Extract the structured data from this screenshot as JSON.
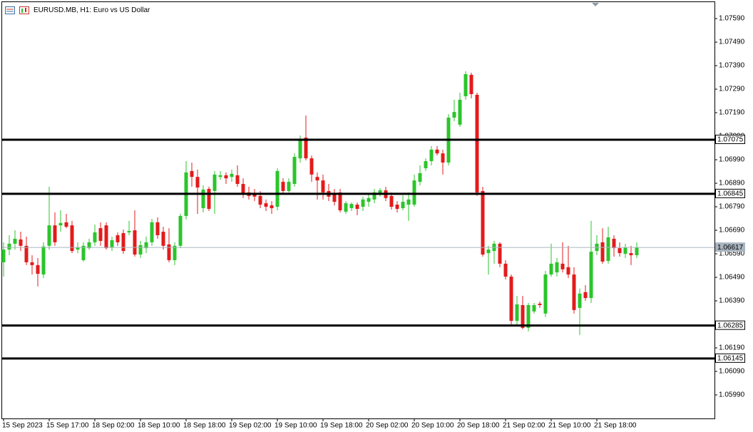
{
  "chart_data": {
    "type": "candlestick",
    "title": "EURUSD.MB, H1:  Euro vs US Dollar",
    "categories": [
      "15 Sep 2023",
      null,
      null,
      null,
      null,
      null,
      null,
      null,
      "15 Sep 17:00",
      null,
      null,
      null,
      null,
      null,
      null,
      null,
      "18 Sep 02:00",
      null,
      null,
      null,
      null,
      null,
      null,
      null,
      "18 Sep 10:00",
      null,
      null,
      null,
      null,
      null,
      null,
      null,
      "18 Sep 18:00",
      null,
      null,
      null,
      null,
      null,
      null,
      null,
      "19 Sep 02:00",
      null,
      null,
      null,
      null,
      null,
      null,
      null,
      "19 Sep 10:00",
      null,
      null,
      null,
      null,
      null,
      null,
      null,
      "19 Sep 18:00",
      null,
      null,
      null,
      null,
      null,
      null,
      null,
      "20 Sep 02:00",
      null,
      null,
      null,
      null,
      null,
      null,
      null,
      "20 Sep 10:00",
      null,
      null,
      null,
      null,
      null,
      null,
      null,
      "20 Sep 18:00",
      null,
      null,
      null,
      null,
      null,
      null,
      null,
      "21 Sep 02:00",
      null,
      null,
      null,
      null,
      null,
      null,
      null,
      "21 Sep 10:00",
      null,
      null,
      null,
      null,
      null,
      null,
      null,
      "21 Sep 18:00",
      null,
      null,
      null,
      null,
      null,
      null,
      null
    ],
    "open": [
      1.06554,
      1.06608,
      1.06633,
      1.06651,
      1.06624,
      1.06554,
      1.06542,
      1.06502,
      1.06624,
      1.06711,
      1.06711,
      1.06724,
      1.06711,
      1.06608,
      1.06563,
      1.06614,
      1.06639,
      1.06699,
      1.06711,
      1.06617,
      1.06669,
      1.06678,
      1.06681,
      1.0669,
      1.06587,
      1.06614,
      1.06639,
      1.06724,
      1.06684,
      1.0663,
      1.06563,
      1.06624,
      1.06751,
      1.06942,
      1.06917,
      1.06784,
      1.06866,
      1.06857,
      1.06917,
      1.06924,
      1.06917,
      1.06924,
      1.06887,
      1.06851,
      1.06848,
      1.06836,
      1.06805,
      1.06796,
      1.0679,
      1.06896,
      1.06857,
      1.06887,
      1.06996,
      1.07084,
      1.06996,
      1.06917,
      1.06902,
      1.06857,
      1.06845,
      1.06851,
      1.06769,
      1.06784,
      1.06799,
      1.0679,
      1.06811,
      1.06821,
      1.06845,
      1.0686,
      1.06836,
      1.06799,
      1.06784,
      1.06799,
      1.06799,
      1.06896,
      1.06954,
      1.06984,
      1.07033,
      1.07017,
      1.06978,
      1.07169,
      1.07139,
      1.0726,
      1.07351,
      1.07266,
      1.06857,
      1.06593,
      1.06602,
      1.06633,
      1.06548,
      1.06493,
      1.06305,
      1.06372,
      1.06275,
      1.06345,
      1.06378,
      1.06336,
      1.06502,
      1.06511,
      1.06548,
      1.06533,
      1.06502,
      1.0636,
      1.06427,
      1.06402,
      1.06602,
      1.06639,
      1.0656,
      1.06654,
      1.06614,
      1.0659,
      1.06593,
      1.06584
    ],
    "high": [
      1.06639,
      1.06669,
      1.0669,
      1.06684,
      1.06663,
      1.06584,
      1.06572,
      1.06639,
      1.06875,
      1.06766,
      1.06775,
      1.0676,
      1.0673,
      1.06639,
      1.06639,
      1.06654,
      1.06714,
      1.06724,
      1.06724,
      1.06663,
      1.06681,
      1.06693,
      1.0673,
      1.06775,
      1.06645,
      1.06663,
      1.06739,
      1.06745,
      1.06705,
      1.06699,
      1.06639,
      1.0676,
      1.06984,
      1.06978,
      1.06948,
      1.06881,
      1.06875,
      1.06942,
      1.06942,
      1.06936,
      1.06948,
      1.06966,
      1.06911,
      1.06875,
      1.06866,
      1.06857,
      1.06821,
      1.06814,
      1.06954,
      1.06911,
      1.06911,
      1.07017,
      1.07093,
      1.07178,
      1.07008,
      1.06936,
      1.06927,
      1.06887,
      1.06866,
      1.06866,
      1.06814,
      1.06808,
      1.06808,
      1.06833,
      1.06845,
      1.06866,
      1.06869,
      1.06875,
      1.06851,
      1.06814,
      1.06839,
      1.06851,
      1.06927,
      1.06966,
      1.06996,
      1.07048,
      1.07048,
      1.07033,
      1.07184,
      1.07245,
      1.07275,
      1.07366,
      1.0736,
      1.07275,
      1.06875,
      1.06624,
      1.06645,
      1.06639,
      1.06563,
      1.06502,
      1.06411,
      1.06411,
      1.06381,
      1.06381,
      1.06387,
      1.06517,
      1.06633,
      1.06572,
      1.06639,
      1.06624,
      1.06533,
      1.06442,
      1.06457,
      1.0673,
      1.06669,
      1.06699,
      1.06705,
      1.06669,
      1.06639,
      1.06633,
      1.06624,
      1.06639
    ],
    "low": [
      1.06493,
      1.06584,
      1.06608,
      1.06602,
      1.06542,
      1.06502,
      1.06451,
      1.06487,
      1.06608,
      1.06624,
      1.06684,
      1.06699,
      1.06593,
      1.06593,
      1.06557,
      1.06608,
      1.06624,
      1.06624,
      1.06608,
      1.06602,
      1.06624,
      1.0659,
      1.06669,
      1.06578,
      1.06572,
      1.06593,
      1.06624,
      1.06654,
      1.06608,
      1.06554,
      1.06542,
      1.06614,
      1.06736,
      1.06875,
      1.0676,
      1.06766,
      1.06772,
      1.0676,
      1.06905,
      1.06887,
      1.06896,
      1.06875,
      1.06827,
      1.06821,
      1.06814,
      1.06784,
      1.06772,
      1.0676,
      1.06775,
      1.06845,
      1.06851,
      1.06875,
      1.06978,
      1.06987,
      1.06896,
      1.06821,
      1.06821,
      1.06814,
      1.06796,
      1.06766,
      1.0676,
      1.06772,
      1.06754,
      1.06772,
      1.0679,
      1.06805,
      1.06833,
      1.06814,
      1.06778,
      1.06766,
      1.06775,
      1.0673,
      1.0679,
      1.06881,
      1.06942,
      1.06966,
      1.07008,
      1.06927,
      1.06966,
      1.07154,
      1.0713,
      1.07245,
      1.07251,
      1.06836,
      1.06578,
      1.06502,
      1.06548,
      1.06533,
      1.06481,
      1.0629,
      1.06281,
      1.06269,
      1.0626,
      1.06336,
      1.0636,
      1.06321,
      1.06493,
      1.06493,
      1.06511,
      1.06487,
      1.06336,
      1.06245,
      1.0639,
      1.06381,
      1.06584,
      1.06548,
      1.06548,
      1.06578,
      1.06578,
      1.06572,
      1.06542,
      1.06572
    ],
    "close": [
      1.06608,
      1.06633,
      1.06654,
      1.06624,
      1.06554,
      1.06542,
      1.06505,
      1.06621,
      1.06711,
      1.06639,
      1.06721,
      1.06705,
      1.06602,
      1.06617,
      1.06624,
      1.06639,
      1.06681,
      1.06645,
      1.06614,
      1.06648,
      1.06639,
      1.06602,
      1.06687,
      1.06587,
      1.06627,
      1.06639,
      1.06724,
      1.06669,
      1.06624,
      1.06563,
      1.06624,
      1.06751,
      1.06936,
      1.06917,
      1.06872,
      1.06863,
      1.06781,
      1.06927,
      1.06924,
      1.06911,
      1.0693,
      1.06887,
      1.06845,
      1.06836,
      1.06833,
      1.06799,
      1.0679,
      1.06784,
      1.06942,
      1.06857,
      1.06896,
      1.07002,
      1.07078,
      1.06996,
      1.06927,
      1.06902,
      1.06851,
      1.06833,
      1.06811,
      1.06775,
      1.06805,
      1.06802,
      1.06781,
      1.06821,
      1.06827,
      1.06851,
      1.0686,
      1.06827,
      1.0679,
      1.06781,
      1.06811,
      1.06821,
      1.06902,
      1.06933,
      1.06984,
      1.07033,
      1.07017,
      1.06978,
      1.07169,
      1.07193,
      1.07245,
      1.07354,
      1.07269,
      1.06851,
      1.06587,
      1.06608,
      1.06633,
      1.06548,
      1.06493,
      1.06305,
      1.06375,
      1.06275,
      1.06372,
      1.06372,
      1.06372,
      1.06502,
      1.06548,
      1.06554,
      1.06524,
      1.06502,
      1.06351,
      1.06421,
      1.06402,
      1.06599,
      1.06633,
      1.06557,
      1.0666,
      1.06614,
      1.06593,
      1.06617,
      1.06584,
      1.06617
    ],
    "up_color": "#2bc52b",
    "down_color": "#e31b1b",
    "ylim": [
      1.0589,
      1.0766
    ],
    "yticks": [
      {
        "value": 1.0759,
        "label": "1.07590"
      },
      {
        "value": 1.0749,
        "label": "1.07490"
      },
      {
        "value": 1.0739,
        "label": "1.07390"
      },
      {
        "value": 1.0729,
        "label": "1.07290"
      },
      {
        "value": 1.0719,
        "label": "1.07190"
      },
      {
        "value": 1.0709,
        "label": "1.07090"
      },
      {
        "value": 1.0699,
        "label": "1.06990"
      },
      {
        "value": 1.0689,
        "label": "1.06890"
      },
      {
        "value": 1.0679,
        "label": "1.06790"
      },
      {
        "value": 1.0669,
        "label": "1.06690"
      },
      {
        "value": 1.0659,
        "label": "1.06590"
      },
      {
        "value": 1.0649,
        "label": "1.06490"
      },
      {
        "value": 1.0639,
        "label": "1.06390"
      },
      {
        "value": 1.0629,
        "label": "1.06290"
      },
      {
        "value": 1.0619,
        "label": "1.06190"
      },
      {
        "value": 1.0609,
        "label": "1.06090"
      },
      {
        "value": 1.0599,
        "label": "1.05990"
      }
    ],
    "levels": [
      1.07075,
      1.06845,
      1.06285,
      1.06145
    ],
    "level_color": "#000000",
    "last_price": 1.06617,
    "last_price_color": "#a9b4bf"
  }
}
